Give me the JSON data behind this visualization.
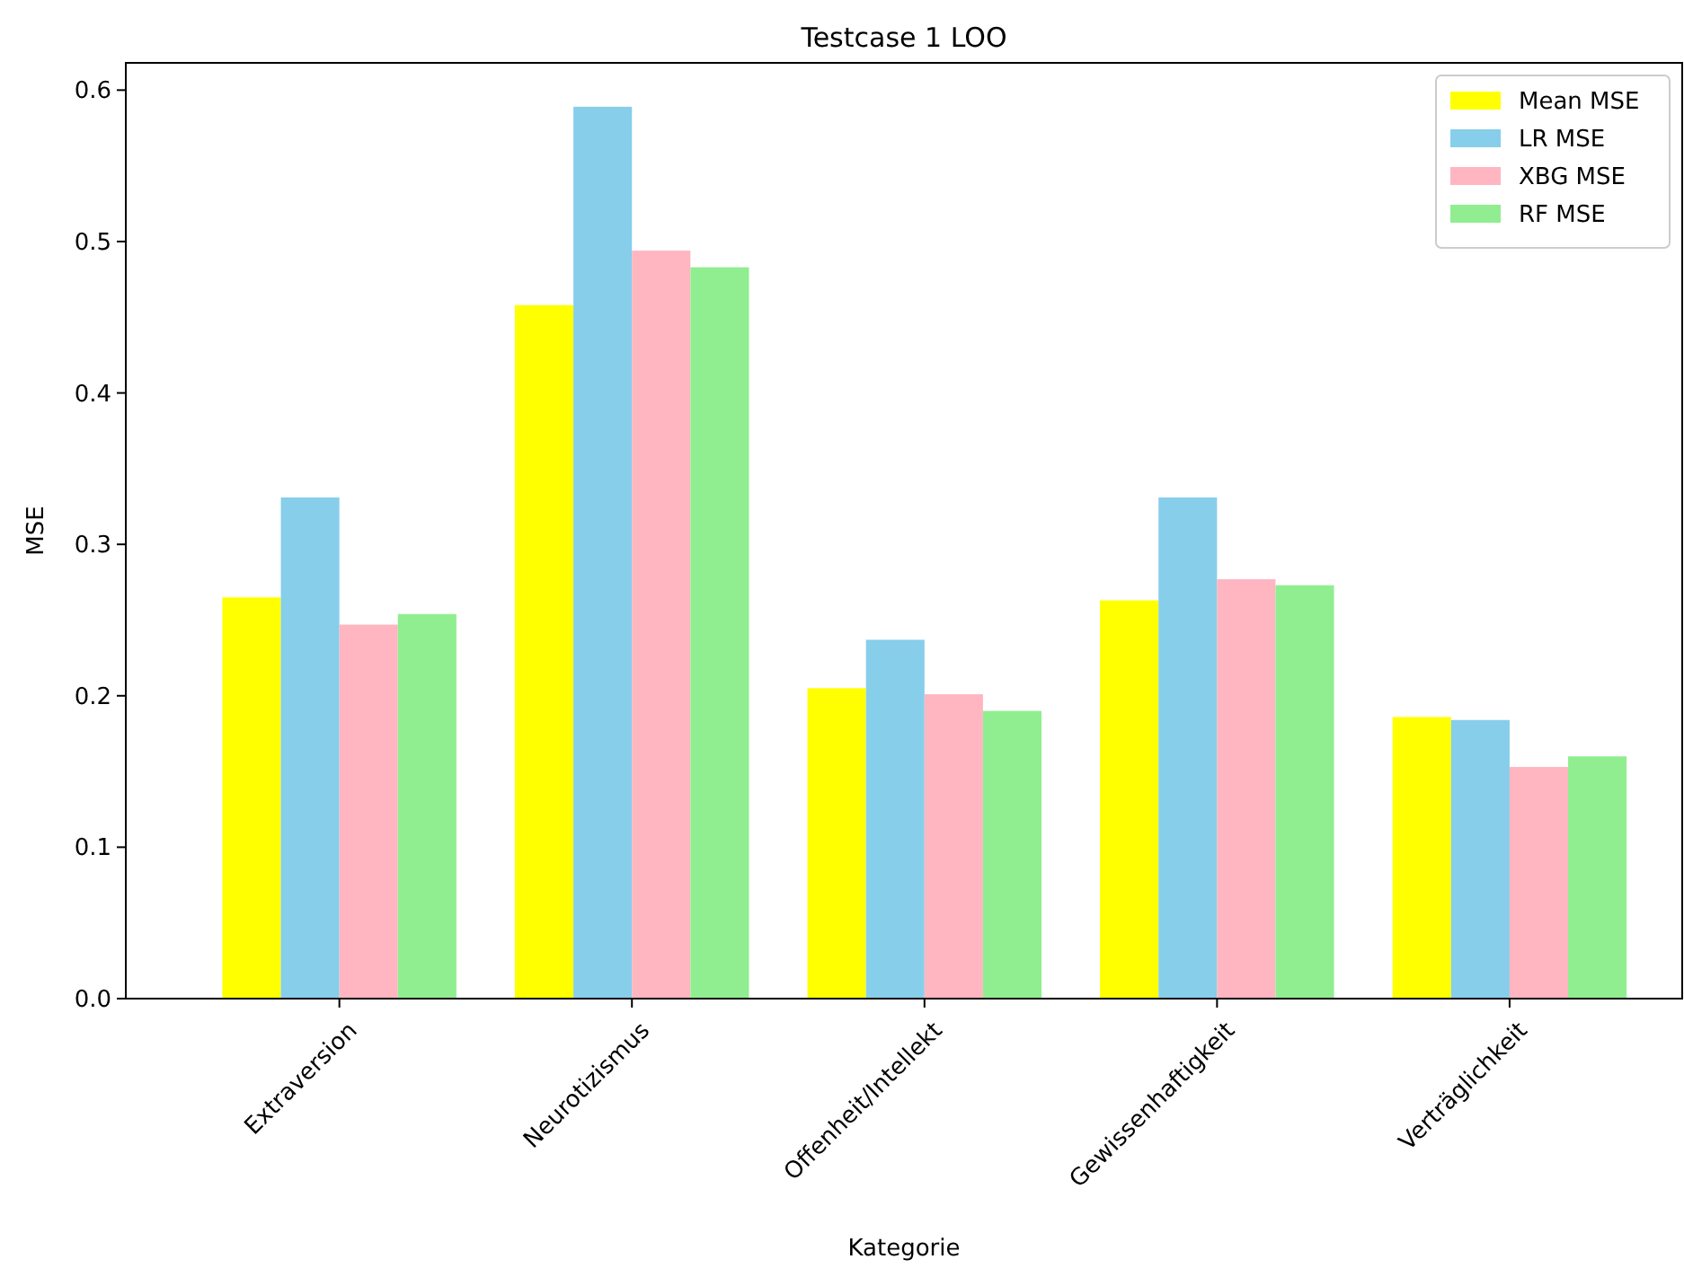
{
  "chart_data": {
    "type": "bar",
    "title": "Testcase 1 LOO",
    "xlabel": "Kategorie",
    "ylabel": "MSE",
    "categories": [
      "Extraversion",
      "Neurotizismus",
      "Offenheit/Intellekt",
      "Gewissenhaftigkeit",
      "Verträglichkeit"
    ],
    "series": [
      {
        "name": "Mean MSE",
        "color": "#ffff00",
        "values": [
          0.265,
          0.458,
          0.205,
          0.263,
          0.186
        ]
      },
      {
        "name": "LR MSE",
        "color": "#87ceeb",
        "values": [
          0.331,
          0.589,
          0.237,
          0.331,
          0.184
        ]
      },
      {
        "name": "XBG MSE",
        "color": "#ffb6c1",
        "values": [
          0.247,
          0.494,
          0.201,
          0.277,
          0.153
        ]
      },
      {
        "name": "RF MSE",
        "color": "#90ee90",
        "values": [
          0.254,
          0.483,
          0.19,
          0.273,
          0.16
        ]
      }
    ],
    "ylim": [
      0,
      0.618
    ],
    "yticks": [
      {
        "value": 0,
        "label": "0.0"
      },
      0.1,
      0.2,
      0.3,
      0.4,
      0.5,
      0.6
    ],
    "legend": "top right",
    "grid": false
  }
}
